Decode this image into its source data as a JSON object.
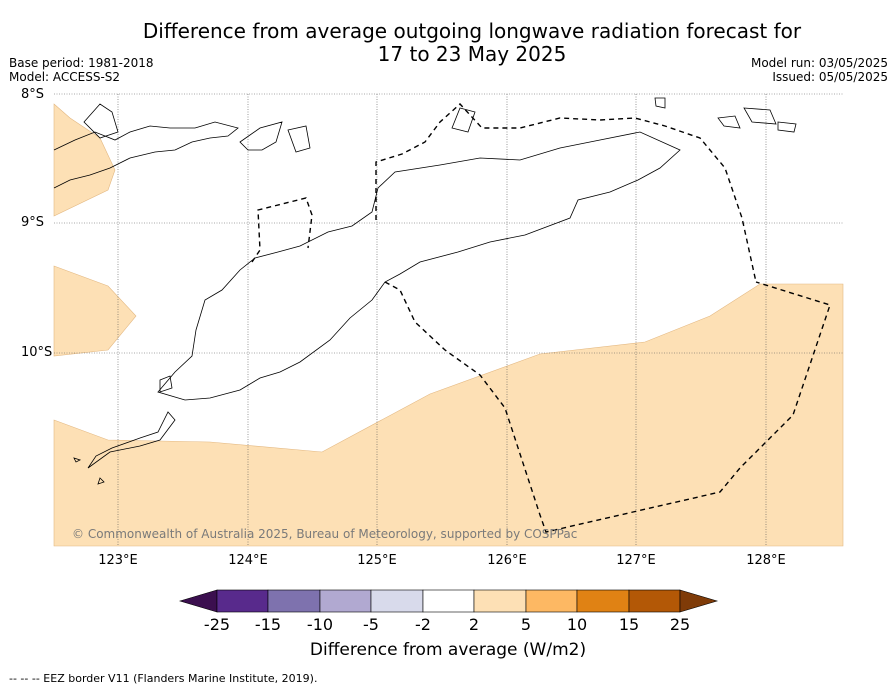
{
  "title_line1": "Difference from average outgoing longwave radiation forecast for",
  "title_line2": "17 to 23 May 2025",
  "meta_left": {
    "base_period": "Base period: 1981-2018",
    "model": "Model: ACCESS-S2"
  },
  "meta_right": {
    "model_run": "Model run: 03/05/2025",
    "issued": "Issued: 05/05/2025"
  },
  "latitude_labels": [
    "8°S",
    "9°S",
    "10°S"
  ],
  "longitude_labels": [
    "123°E",
    "124°E",
    "125°E",
    "126°E",
    "127°E",
    "128°E"
  ],
  "copyright": "© Commonwealth of Australia 2025, Bureau of Meteorology, supported by COSPPac",
  "colorbar": {
    "label": "Difference from average (W/m2)",
    "ticks": [
      "-25",
      "-15",
      "-10",
      "-5",
      "-2",
      "2",
      "5",
      "10",
      "15",
      "25"
    ],
    "colors": [
      "#3b0f4f",
      "#582a8c",
      "#7e72ae",
      "#b1a9d1",
      "#d8daeb",
      "#ffffff",
      "#fde0b5",
      "#fdb863",
      "#e08214",
      "#b35806",
      "#7f3b08"
    ]
  },
  "footnote": "--  --  -- EEZ border V11 (Flanders Marine Institute, 2019).",
  "map_colors": {
    "anomaly_2_to_5": "#fde0b5",
    "grid": "#555555",
    "coast": "#000000"
  }
}
